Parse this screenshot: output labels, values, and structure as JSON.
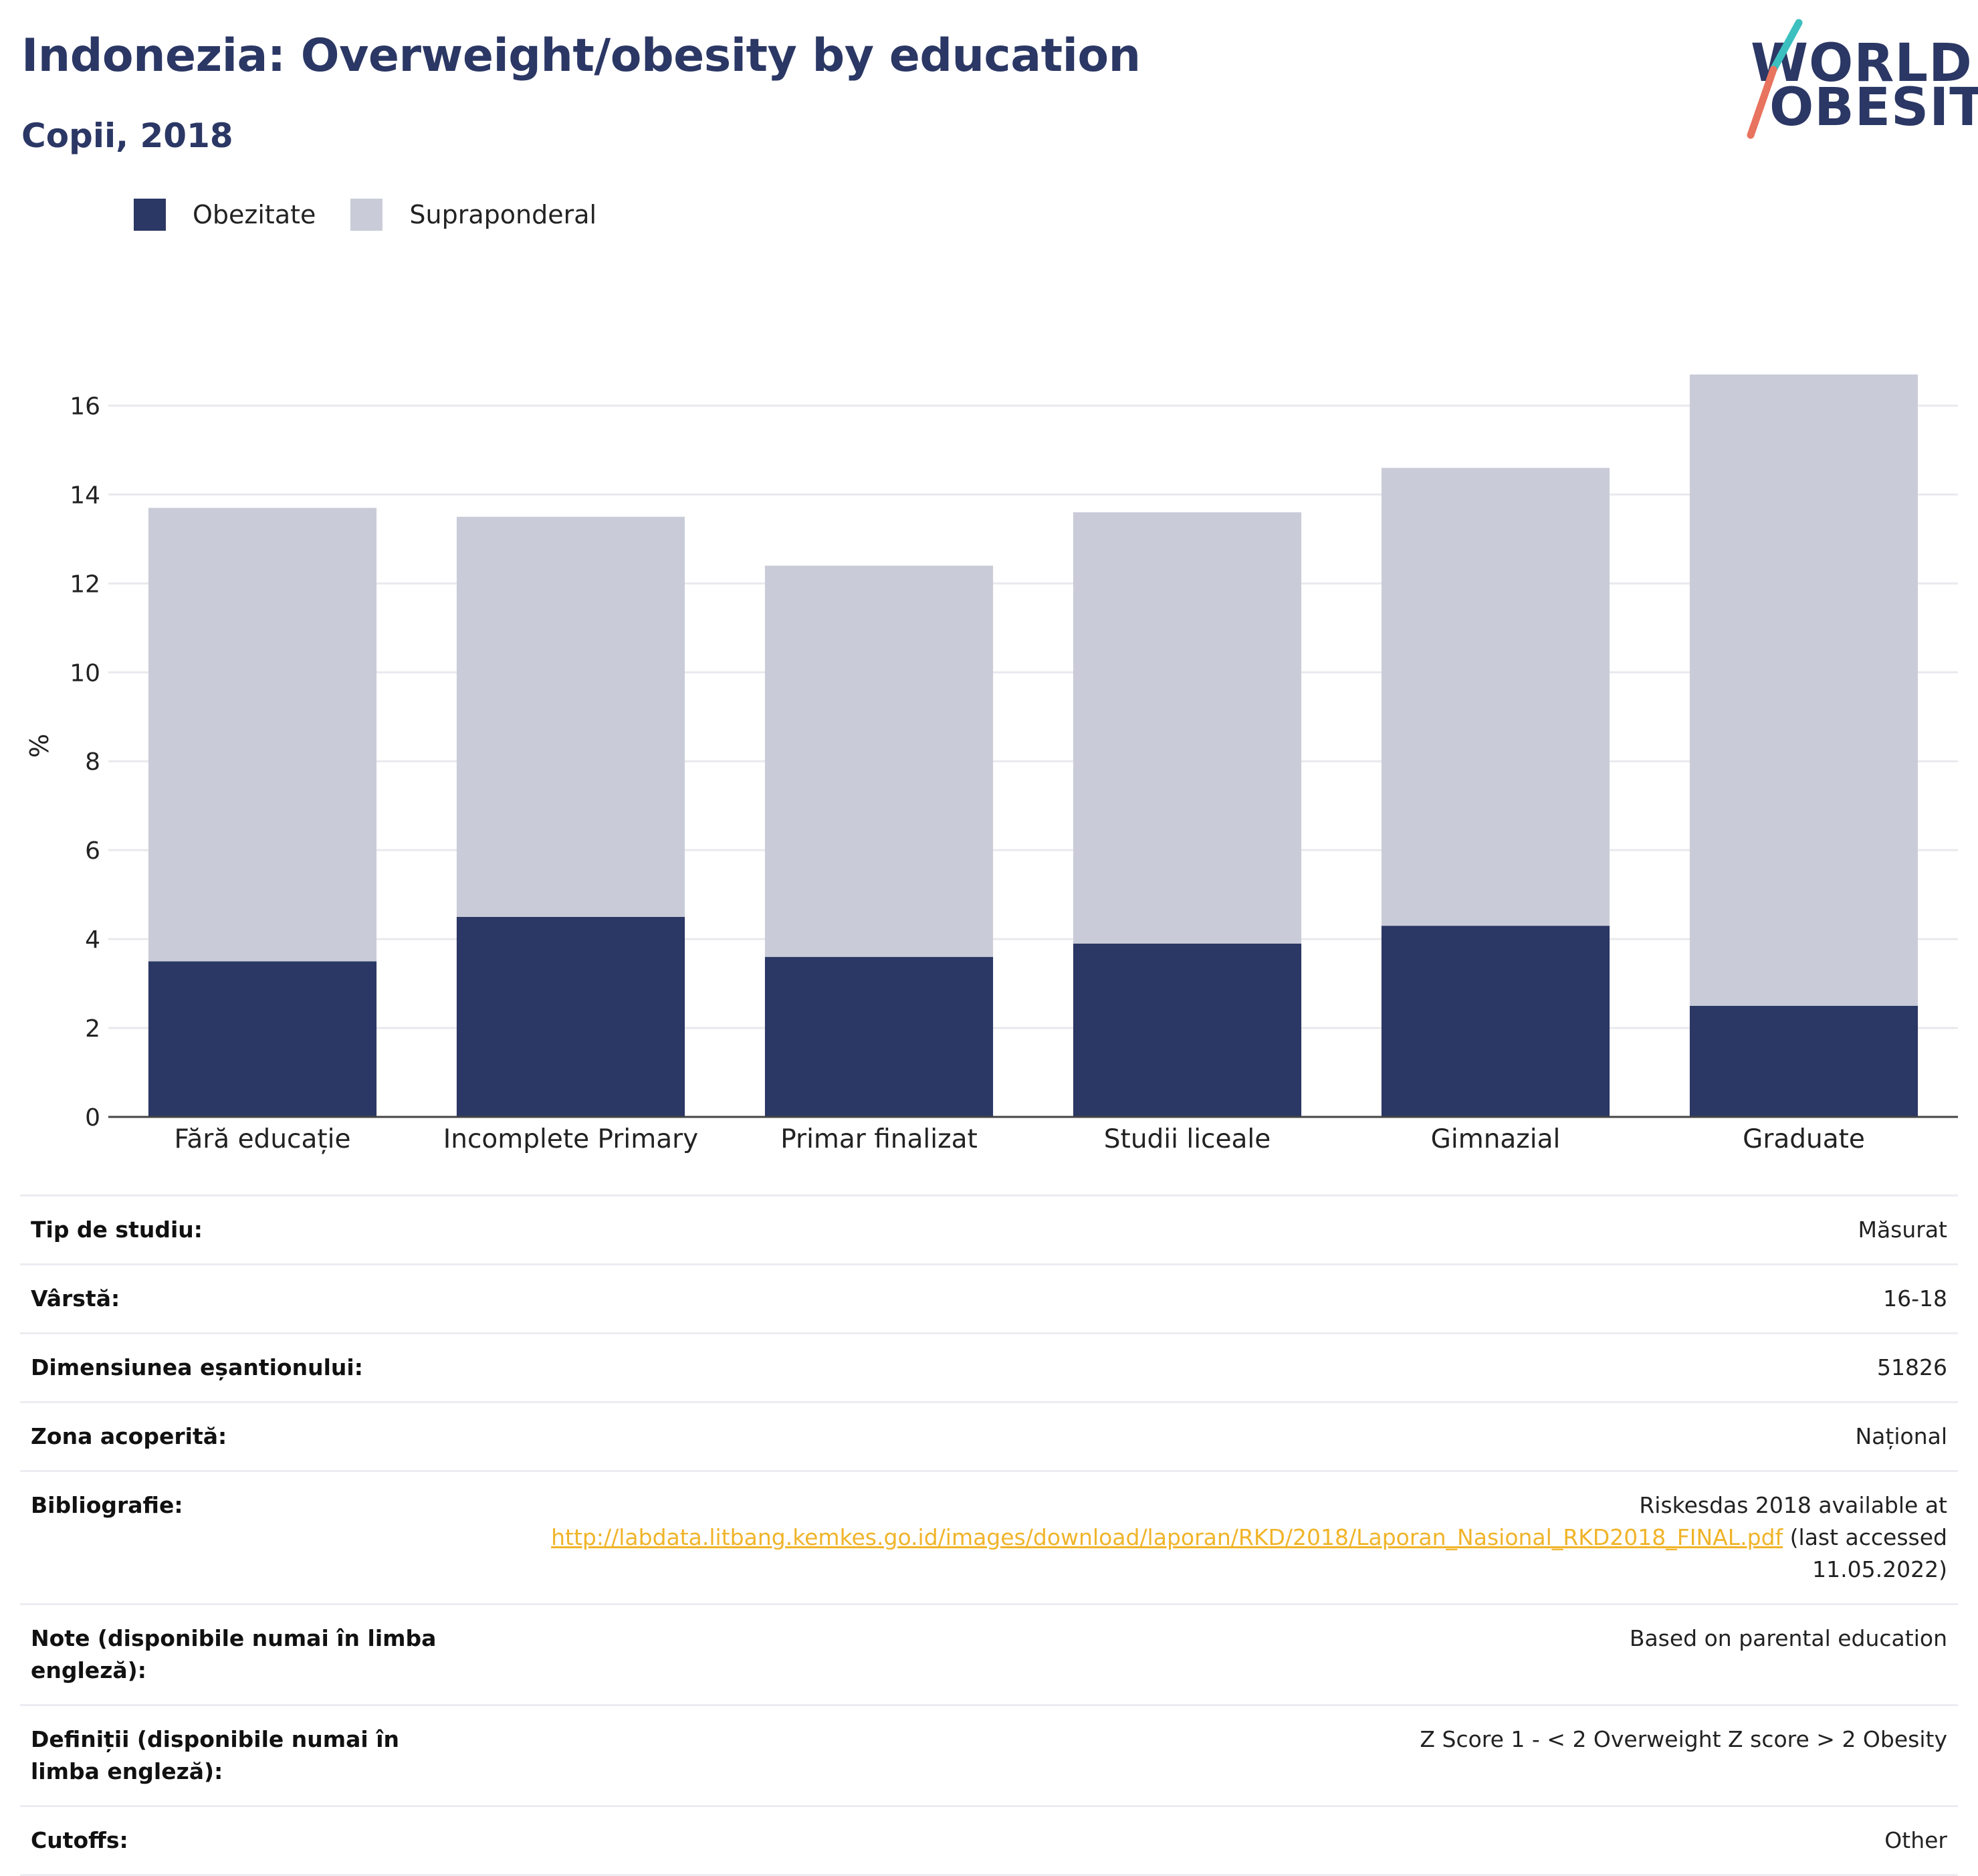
{
  "header": {
    "title": "Indonezia: Overweight/obesity by education",
    "subtitle": "Copii, 2018",
    "logo_line1": "WORLD",
    "logo_line2": "OBESITY"
  },
  "colors": {
    "obesity": "#2b3764",
    "overweight": "#c9ccd8",
    "accent_teal": "#3cbfbf",
    "accent_coral": "#e8735e",
    "link": "#f0b429"
  },
  "chart_data": {
    "type": "bar",
    "stacked": true,
    "categories": [
      "Fără educație",
      "Incomplete Primary",
      "Primar finalizat",
      "Studii liceale",
      "Gimnazial",
      "Graduate"
    ],
    "series": [
      {
        "name": "Obezitate",
        "values": [
          3.5,
          4.5,
          3.6,
          3.9,
          4.3,
          2.5
        ]
      },
      {
        "name": "Supraponderal",
        "values": [
          10.2,
          9.0,
          8.8,
          9.7,
          10.3,
          14.2
        ]
      }
    ],
    "ylabel": "%",
    "xlabel": "",
    "ylim": [
      0,
      17
    ],
    "yticks": [
      0,
      2,
      4,
      6,
      8,
      10,
      12,
      14,
      16
    ],
    "grid": true,
    "legend": "top-left"
  },
  "meta": {
    "rows": [
      {
        "label": "Tip de studiu:",
        "value": "Măsurat"
      },
      {
        "label": "Vârstă:",
        "value": "16-18"
      },
      {
        "label": "Dimensiunea eșantionului:",
        "value": "51826"
      },
      {
        "label": "Zona acoperită:",
        "value": "Național"
      },
      {
        "label": "Note (disponibile numai în limba engleză):",
        "value": "Based on parental education"
      },
      {
        "label": "Definiții (disponibile numai în limba engleză):",
        "value": "Z Score 1 - < 2 Overweight Z score > 2 Obesity"
      },
      {
        "label": "Cutoffs:",
        "value": "Other"
      }
    ],
    "bibliography": {
      "label": "Bibliografie:",
      "before": "Riskesdas 2018 available at",
      "link": "http://labdata.litbang.kemkes.go.id/images/download/laporan/RKD/2018/Laporan_Nasional_RKD2018_FINAL.pdf",
      "after": "(last accessed 11.05.2022)"
    }
  }
}
